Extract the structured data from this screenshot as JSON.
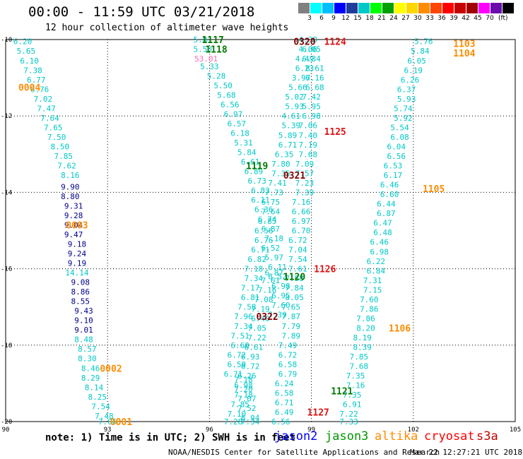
{
  "header": {
    "title": "00:00 - 11:59 UTC 03/21/2018",
    "subtitle": "12 hour collection of altimeter wave heights"
  },
  "scale": {
    "colors": [
      "#808080",
      "#00ffff",
      "#00bfff",
      "#0000ff",
      "#1e3c9b",
      "#00c8c8",
      "#00ff00",
      "#00a000",
      "#ffff00",
      "#ffd700",
      "#ff8c00",
      "#ff4500",
      "#ff0000",
      "#c80000",
      "#a00000",
      "#ff00ff",
      "#6a0dad",
      "#000000"
    ],
    "labels": [
      "3",
      "6",
      "9",
      "12",
      "15",
      "18",
      "21",
      "24",
      "27",
      "30",
      "33",
      "36",
      "39",
      "42",
      "45",
      "70"
    ],
    "unit": "(ft)"
  },
  "chart_data": {
    "type": "scatter",
    "xlim": [
      90,
      105
    ],
    "ylim": [
      -20,
      -10
    ],
    "x_ticks": [
      90,
      93,
      96,
      99,
      102,
      105
    ],
    "y_ticks": [
      -10,
      -12,
      -14,
      -16,
      -18,
      -20
    ],
    "grid": true,
    "series": [
      {
        "name": "jason2",
        "color": "#00c8c8",
        "labels": [
          "6.20",
          "5.65",
          "6.10",
          "7.38",
          "6.77",
          "6.76",
          "7.02",
          "7.47",
          "7.64",
          "7.65",
          "7.50",
          "8.50",
          "7.85",
          "7.62",
          "8.16"
        ],
        "x": [
          90.5,
          90.6,
          90.7,
          90.8,
          90.9,
          91.0,
          91.1,
          91.2,
          91.3,
          91.4,
          91.5,
          91.6,
          91.7,
          91.8,
          91.9
        ],
        "y": [
          -10.05,
          -10.3,
          -10.55,
          -10.8,
          -11.05,
          -11.3,
          -11.55,
          -11.8,
          -12.05,
          -12.3,
          -12.55,
          -12.8,
          -13.05,
          -13.3,
          -13.55
        ]
      },
      {
        "name": "jason2",
        "color": "#00008b",
        "labels": [
          "9.90",
          "8.80",
          "9.31",
          "9.28",
          "9.04",
          "9.47",
          "9.18",
          "9.24",
          "9.19"
        ],
        "x": [
          91.9,
          91.9,
          92.0,
          92.0,
          92.0,
          92.0,
          92.1,
          92.1,
          92.1
        ],
        "y": [
          -13.85,
          -14.1,
          -14.35,
          -14.6,
          -14.85,
          -15.1,
          -15.35,
          -15.6,
          -15.85
        ]
      },
      {
        "name": "jason2",
        "color": "#00c8c8",
        "labels": [
          "14.14"
        ],
        "x": [
          92.1
        ],
        "y": [
          -16.1
        ]
      },
      {
        "name": "jason2",
        "color": "#00008b",
        "labels": [
          "9.08",
          "8.86",
          "8.55",
          "9.43",
          "9.10",
          "9.01"
        ],
        "x": [
          92.2,
          92.2,
          92.2,
          92.3,
          92.3,
          92.3
        ],
        "y": [
          -16.35,
          -16.6,
          -16.85,
          -17.1,
          -17.35,
          -17.6
        ]
      },
      {
        "name": "jason2",
        "color": "#00c8c8",
        "labels": [
          "8.48",
          "8.57",
          "8.30",
          "8.46",
          "8.29",
          "8.14",
          "8.25",
          "7.54",
          "7.48",
          "7.06"
        ],
        "x": [
          92.3,
          92.4,
          92.4,
          92.5,
          92.5,
          92.6,
          92.7,
          92.8,
          92.9,
          93.0
        ],
        "y": [
          -17.85,
          -18.1,
          -18.35,
          -18.6,
          -18.85,
          -19.1,
          -19.35,
          -19.6,
          -19.85,
          -20.0
        ]
      },
      {
        "name": "jason2",
        "color": "#00c8c8",
        "labels": [
          "5.81",
          "5.50",
          "5.33",
          "5.28",
          "5.50",
          "5.68",
          "6.56",
          "6.97",
          "6.57",
          "6.18",
          "5.31",
          "5.84",
          "6.61",
          "6.89",
          "6.73",
          "6.83",
          "6.11",
          "6.36",
          "6.74",
          "6.87",
          "7.18",
          "6.52",
          "5.97",
          "6.11",
          "6.52",
          "6.98",
          "6.95",
          "7.60",
          "7.39",
          "6.87",
          "7.61",
          "7.16",
          "7.08",
          "7.19",
          "6.40",
          "7.05",
          "7.22",
          "6.61",
          "6.93",
          "6.72",
          "6.26",
          "6.98",
          "7.18",
          "7.85",
          "7.10",
          "7.28"
        ],
        "x": [
          95.8,
          95.8,
          96.0,
          96.2,
          96.4,
          96.5,
          96.6,
          96.7,
          96.8,
          96.9,
          97.0,
          97.1,
          97.2,
          97.3,
          97.4,
          97.5,
          97.5,
          97.6,
          97.7,
          97.8,
          97.9,
          97.8,
          97.9,
          98.0,
          98.0,
          98.1,
          98.1,
          98.1,
          98.0,
          97.9,
          97.8,
          97.7,
          97.6,
          97.5,
          97.5,
          97.4,
          97.4,
          97.3,
          97.2,
          97.2,
          97.1,
          97.0,
          97.0,
          96.9,
          96.8,
          96.7
        ],
        "y": [
          -10.0,
          -10.25,
          -10.7,
          -10.95,
          -11.2,
          -11.45,
          -11.7,
          -11.95,
          -12.2,
          -12.45,
          -12.7,
          -12.95,
          -13.2,
          -13.45,
          -13.7,
          -13.95,
          -14.2,
          -14.45,
          -14.7,
          -14.95,
          -15.2,
          -15.45,
          -15.7,
          -15.95,
          -16.2,
          -16.45,
          -16.7,
          -16.95,
          -17.2,
          -16.1,
          -16.3,
          -16.55,
          -16.8,
          -17.05,
          -17.3,
          -17.55,
          -17.8,
          -18.05,
          -18.3,
          -18.55,
          -18.8,
          -19.05,
          -19.3,
          -19.55,
          -19.8,
          -20.0
        ]
      },
      {
        "name": "jason2",
        "color": "#ff69b4",
        "labels": [
          "53.01"
        ],
        "x": [
          95.9
        ],
        "y": [
          -10.5
        ]
      },
      {
        "name": "jason2",
        "color": "#00c8c8",
        "labels": [
          "4.38",
          "4.06",
          "4.49",
          "6.23",
          "3.97",
          "5.66",
          "5.02",
          "5.93",
          "4.61",
          "5.39",
          "5.89",
          "6.71",
          "6.35",
          "7.80",
          "7.35",
          "7.41",
          "7.73",
          "6.75",
          "7.64",
          "6.85",
          "6.56",
          "6.76",
          "6.71",
          "6.82",
          "7.18",
          "7.34",
          "7.17",
          "6.81",
          "7.58",
          "7.96",
          "7.34",
          "7.51",
          "6.60",
          "6.72",
          "6.59",
          "6.71",
          "7.18",
          "7.20",
          "7.07",
          "7.52",
          "6.94",
          "7.34"
        ],
        "x": [
          98.9,
          98.9,
          98.8,
          98.8,
          98.7,
          98.6,
          98.5,
          98.5,
          98.4,
          98.4,
          98.3,
          98.3,
          98.2,
          98.1,
          98.1,
          98.0,
          97.9,
          97.8,
          97.8,
          97.7,
          97.6,
          97.6,
          97.5,
          97.4,
          97.3,
          97.3,
          97.2,
          97.2,
          97.1,
          97.0,
          97.0,
          96.9,
          96.9,
          96.8,
          96.8,
          96.7,
          97.0,
          97.0,
          97.1,
          97.1,
          97.2,
          97.2
        ],
        "y": [
          -10.0,
          -10.25,
          -10.5,
          -10.75,
          -11.0,
          -11.25,
          -11.5,
          -11.75,
          -12.0,
          -12.25,
          -12.5,
          -12.75,
          -13.0,
          -13.25,
          -13.5,
          -13.75,
          -14.0,
          -14.25,
          -14.5,
          -14.75,
          -15.0,
          -15.25,
          -15.5,
          -15.75,
          -16.0,
          -16.25,
          -16.5,
          -16.75,
          -17.0,
          -17.25,
          -17.5,
          -17.75,
          -18.0,
          -18.25,
          -18.5,
          -18.75,
          -18.9,
          -19.15,
          -19.4,
          -19.65,
          -19.9,
          -20.0
        ]
      },
      {
        "name": "jason2",
        "color": "#00c8c8",
        "labels": [
          "6.05",
          "6.34",
          "8.61",
          "6.16",
          "6.68",
          "7.42",
          "5.95",
          "6.98",
          "7.06",
          "7.40",
          "7.19",
          "7.68",
          "7.09",
          "7.57",
          "7.23",
          "7.39",
          "7.16",
          "6.66",
          "6.97",
          "6.70",
          "6.72",
          "7.04",
          "7.54",
          "7.61",
          "7.58",
          "7.84",
          "8.05",
          "7.65",
          "7.87",
          "7.79",
          "7.89",
          "7.49",
          "6.72",
          "6.58",
          "6.79",
          "6.24",
          "6.58",
          "6.71",
          "6.49",
          "6.56"
        ],
        "x": [
          99.0,
          99.0,
          99.1,
          99.1,
          99.1,
          99.0,
          99.0,
          99.0,
          98.9,
          98.9,
          98.9,
          98.9,
          98.8,
          98.8,
          98.8,
          98.8,
          98.7,
          98.7,
          98.7,
          98.7,
          98.6,
          98.6,
          98.6,
          98.6,
          98.5,
          98.5,
          98.5,
          98.4,
          98.4,
          98.4,
          98.4,
          98.3,
          98.3,
          98.3,
          98.3,
          98.2,
          98.2,
          98.2,
          98.2,
          98.1
        ],
        "y": [
          -10.25,
          -10.5,
          -10.75,
          -11.0,
          -11.25,
          -11.5,
          -11.75,
          -12.0,
          -12.25,
          -12.5,
          -12.75,
          -13.0,
          -13.25,
          -13.5,
          -13.75,
          -14.0,
          -14.25,
          -14.5,
          -14.75,
          -15.0,
          -15.25,
          -15.5,
          -15.75,
          -16.0,
          -16.25,
          -16.5,
          -16.75,
          -17.0,
          -17.25,
          -17.5,
          -17.75,
          -18.0,
          -18.25,
          -18.5,
          -18.75,
          -19.0,
          -19.25,
          -19.5,
          -19.75,
          -20.0
        ]
      },
      {
        "name": "jason2",
        "color": "#00c8c8",
        "labels": [
          "5.76",
          "5.84",
          "6.05",
          "6.19",
          "6.26",
          "6.37",
          "5.93",
          "5.74",
          "5.92",
          "5.54",
          "6.08",
          "6.04",
          "6.56",
          "6.53",
          "6.17",
          "6.46",
          "6.60",
          "6.44",
          "6.87",
          "6.47",
          "6.48",
          "6.46",
          "6.98",
          "6.22",
          "6.84",
          "7.31",
          "7.15",
          "7.60",
          "7.86",
          "7.86",
          "8.20",
          "8.19",
          "8.39",
          "7.85",
          "7.68",
          "7.35",
          "7.16",
          "7.35",
          "6.91",
          "7.22",
          "7.33"
        ],
        "x": [
          102.3,
          102.2,
          102.1,
          102.0,
          101.9,
          101.8,
          101.8,
          101.7,
          101.7,
          101.6,
          101.6,
          101.5,
          101.5,
          101.4,
          101.4,
          101.3,
          101.3,
          101.2,
          101.2,
          101.1,
          101.1,
          101.0,
          101.0,
          100.9,
          100.9,
          100.8,
          100.8,
          100.7,
          100.7,
          100.6,
          100.6,
          100.5,
          100.5,
          100.4,
          100.4,
          100.3,
          100.3,
          100.2,
          100.2,
          100.1,
          100.1
        ],
        "y": [
          -10.05,
          -10.3,
          -10.55,
          -10.8,
          -11.05,
          -11.3,
          -11.55,
          -11.8,
          -12.05,
          -12.3,
          -12.55,
          -12.8,
          -13.05,
          -13.3,
          -13.55,
          -13.8,
          -14.05,
          -14.3,
          -14.55,
          -14.8,
          -15.05,
          -15.3,
          -15.55,
          -15.8,
          -16.05,
          -16.3,
          -16.55,
          -16.8,
          -17.05,
          -17.3,
          -17.55,
          -17.8,
          -18.05,
          -18.3,
          -18.55,
          -18.8,
          -19.05,
          -19.3,
          -19.55,
          -19.8,
          -20.0
        ]
      }
    ],
    "annotations": [
      {
        "text": "1117",
        "x": 96.1,
        "y": -10.0,
        "color": "#007800"
      },
      {
        "text": "1118",
        "x": 96.2,
        "y": -10.25,
        "color": "#007800"
      },
      {
        "text": "0004",
        "x": 90.7,
        "y": -11.25,
        "color": "#ff8c00"
      },
      {
        "text": "0320",
        "x": 98.8,
        "y": -10.05,
        "color": "#800000"
      },
      {
        "text": "1124",
        "x": 99.7,
        "y": -10.05,
        "color": "#dc1414"
      },
      {
        "text": "1103",
        "x": 103.5,
        "y": -10.1,
        "color": "#ff8c00"
      },
      {
        "text": "1104",
        "x": 103.5,
        "y": -10.35,
        "color": "#ff8c00"
      },
      {
        "text": "1125",
        "x": 99.7,
        "y": -12.4,
        "color": "#dc1414"
      },
      {
        "text": "1119",
        "x": 97.4,
        "y": -13.3,
        "color": "#007800"
      },
      {
        "text": "0321",
        "x": 98.5,
        "y": -13.55,
        "color": "#800000"
      },
      {
        "text": "1105",
        "x": 102.6,
        "y": -13.9,
        "color": "#ff8c00"
      },
      {
        "text": "0003",
        "x": 92.1,
        "y": -14.85,
        "color": "#ff8c00"
      },
      {
        "text": "1126",
        "x": 99.4,
        "y": -16.0,
        "color": "#dc1414"
      },
      {
        "text": "1120",
        "x": 98.5,
        "y": -16.2,
        "color": "#007800"
      },
      {
        "text": "0322",
        "x": 97.7,
        "y": -17.25,
        "color": "#800000"
      },
      {
        "text": "1106",
        "x": 101.6,
        "y": -17.55,
        "color": "#ff8c00"
      },
      {
        "text": "0002",
        "x": 93.1,
        "y": -18.6,
        "color": "#ff8c00"
      },
      {
        "text": "1121",
        "x": 99.9,
        "y": -19.2,
        "color": "#007800"
      },
      {
        "text": "1127",
        "x": 99.2,
        "y": -19.75,
        "color": "#dc1414"
      },
      {
        "text": "0001",
        "x": 93.4,
        "y": -20.0,
        "color": "#ff8c00"
      }
    ]
  },
  "footer": {
    "note": "note: 1) Time is in UTC; 2) SWH is in feet",
    "satellites": [
      {
        "name": "jason2",
        "color": "#0000ff"
      },
      {
        "name": "jason3",
        "color": "#009600"
      },
      {
        "name": "altika",
        "color": "#ff8c00"
      },
      {
        "name": "cryosat",
        "color": "#ff0000"
      },
      {
        "name": "s3a",
        "color": "#c80000"
      }
    ],
    "credit": "NOAA/NESDIS Center for Satellite Applications and Research",
    "timestamp": "Mar 22 12:27:21 UTC 2018"
  }
}
